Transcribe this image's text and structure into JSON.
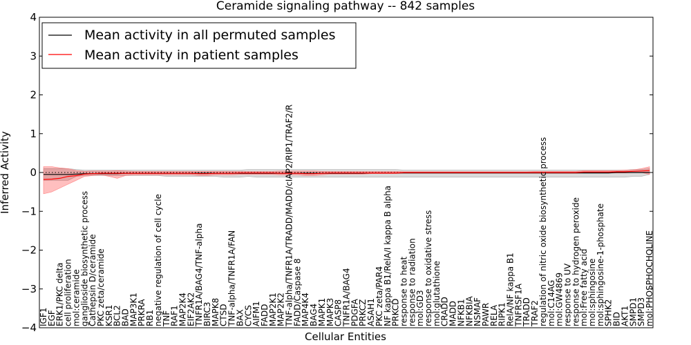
{
  "chart_data": {
    "type": "line",
    "title": "Ceramide signaling pathway -- 842 samples",
    "xlabel": "Cellular Entities",
    "ylabel": "Inferred Activity",
    "ylim": [
      -4,
      4
    ],
    "yticks": [
      -4,
      -3,
      -2,
      -1,
      0,
      1,
      2,
      3,
      4
    ],
    "ytick_labels": [
      "−4",
      "−3",
      "−2",
      "−1",
      "0",
      "1",
      "2",
      "3",
      "4"
    ],
    "grid": false,
    "legend_position": "top-left",
    "categories": [
      "IGF1",
      "EGF",
      "ERK1/PKC delta",
      "cell proliferation",
      "mol:ceramide",
      "ganglioside biosynthetic process",
      "Cathepsin D/ceramide",
      "PKC zeta/ceramide",
      "KSR1",
      "BCL2",
      "BAD",
      "MAP3K1",
      "PRKRA",
      "RB1",
      "negative regulation of cell cycle",
      "TNF",
      "RAF1",
      "MAP2K4",
      "EIF2AK2",
      "TNFR1A/BAG4/TNF-alpha",
      "BIRC3",
      "MAPK8",
      "CTSD",
      "TNF-alpha/TNFR1A/FAN",
      "BAX",
      "CYCS",
      "AIFM1",
      "FADD",
      "MAP2K1",
      "MAP2K2",
      "TNF-alpha/TNFR1A/TRADD/MADD/cIAP2/RIP1/TRAF2/R",
      "FADD/Caspase 8",
      "MAP4K4",
      "BAG4",
      "MAPK1",
      "MAPK3",
      "CASP8",
      "TNFR1A/BAG4",
      "PDGFA",
      "PRKCZ",
      "ASAH1",
      "PKC zeta/PAR4",
      "NF kappa B1/RelA/I kappa B alpha",
      "PRKCD",
      "response to heat",
      "response to radiation",
      "mol:GD3",
      "response to oxidative stress",
      "mol:glutathione",
      "CRADD",
      "MADD",
      "NFKB1",
      "NFKBIA",
      "NSMAF",
      "PAWR",
      "RELA",
      "RIPK1",
      "RelA/NF kappa B1",
      "TNFRSF1A",
      "TRADD",
      "TRAF2",
      "regulation of nitric oxide biosynthetic process",
      "mol:C14AG",
      "mol:GW4869",
      "response to UV",
      "response to hydrogen peroxide",
      "mol:Free fatty acid",
      "mol:sphingosine",
      "mol:sphingosine-1-phosphate",
      "SPHK2",
      "BID",
      "AKT1",
      "SMPD1",
      "SMPD3",
      "mol:PHOSPHOCHOLINE"
    ],
    "series": [
      {
        "name": "Mean activity in all permuted samples",
        "color": "#000000",
        "values": [
          -0.05,
          -0.05,
          -0.05,
          -0.05,
          -0.04,
          -0.03,
          -0.03,
          -0.03,
          -0.03,
          -0.03,
          -0.02,
          -0.02,
          -0.02,
          -0.02,
          -0.02,
          -0.02,
          -0.02,
          -0.02,
          -0.02,
          -0.02,
          -0.02,
          -0.02,
          -0.02,
          -0.02,
          -0.02,
          -0.02,
          -0.02,
          -0.02,
          -0.02,
          -0.02,
          -0.02,
          -0.02,
          -0.02,
          -0.02,
          -0.02,
          -0.02,
          -0.02,
          -0.02,
          -0.02,
          -0.02,
          -0.01,
          -0.01,
          -0.01,
          -0.01,
          -0.01,
          -0.01,
          -0.01,
          -0.01,
          -0.01,
          -0.01,
          -0.01,
          -0.01,
          -0.01,
          -0.01,
          -0.01,
          -0.01,
          -0.01,
          -0.01,
          -0.01,
          -0.01,
          -0.01,
          -0.01,
          -0.01,
          -0.01,
          -0.01,
          -0.01,
          -0.01,
          -0.01,
          -0.01,
          -0.01,
          0.0,
          0.0,
          0.0,
          0.0,
          0.0
        ],
        "band": {
          "lower": [
            -0.2,
            -0.2,
            -0.2,
            -0.2,
            -0.1,
            -0.08,
            -0.08,
            -0.08,
            -0.08,
            -0.08,
            -0.08,
            -0.08,
            -0.08,
            -0.08,
            -0.08,
            -0.1,
            -0.1,
            -0.1,
            -0.1,
            -0.1,
            -0.1,
            -0.1,
            -0.12,
            -0.12,
            -0.12,
            -0.1,
            -0.12,
            -0.12,
            -0.12,
            -0.12,
            -0.12,
            -0.12,
            -0.12,
            -0.12,
            -0.12,
            -0.12,
            -0.12,
            -0.12,
            -0.12,
            -0.12,
            -0.12,
            -0.12,
            -0.12,
            -0.12,
            -0.12,
            -0.12,
            -0.12,
            -0.12,
            -0.12,
            -0.12,
            -0.12,
            -0.12,
            -0.12,
            -0.12,
            -0.12,
            -0.12,
            -0.12,
            -0.12,
            -0.12,
            -0.12,
            -0.12,
            -0.12,
            -0.12,
            -0.12,
            -0.12,
            -0.12,
            -0.12,
            -0.12,
            -0.12,
            -0.12,
            -0.12,
            -0.12,
            -0.1,
            -0.1,
            -0.05
          ],
          "upper": [
            0.1,
            0.1,
            0.1,
            0.1,
            0.08,
            0.06,
            0.06,
            0.06,
            0.06,
            0.06,
            0.06,
            0.06,
            0.06,
            0.06,
            0.06,
            0.06,
            0.06,
            0.06,
            0.06,
            0.06,
            0.06,
            0.06,
            0.06,
            0.06,
            0.06,
            0.08,
            0.08,
            0.08,
            0.08,
            0.08,
            0.08,
            0.08,
            0.08,
            0.08,
            0.08,
            0.08,
            0.08,
            0.08,
            0.08,
            0.08,
            0.08,
            0.08,
            0.08,
            0.08,
            0.06,
            0.06,
            0.06,
            0.06,
            0.06,
            0.06,
            0.06,
            0.06,
            0.06,
            0.06,
            0.06,
            0.06,
            0.06,
            0.06,
            0.06,
            0.06,
            0.06,
            0.06,
            0.06,
            0.06,
            0.06,
            0.06,
            0.06,
            0.06,
            0.06,
            0.06,
            0.06,
            0.06,
            0.08,
            0.08,
            0.1
          ]
        }
      },
      {
        "name": "Mean activity in patient samples",
        "color": "#ff0000",
        "values": [
          -0.18,
          -0.17,
          -0.15,
          -0.1,
          -0.08,
          -0.04,
          -0.03,
          -0.02,
          -0.02,
          -0.02,
          -0.02,
          -0.02,
          -0.02,
          -0.02,
          -0.02,
          -0.02,
          -0.02,
          -0.02,
          -0.02,
          -0.03,
          -0.03,
          -0.02,
          -0.02,
          -0.02,
          -0.01,
          -0.01,
          -0.01,
          -0.01,
          -0.01,
          -0.02,
          -0.02,
          -0.02,
          -0.03,
          -0.03,
          -0.02,
          -0.01,
          -0.01,
          -0.01,
          -0.01,
          -0.01,
          -0.01,
          -0.01,
          -0.01,
          -0.01,
          0.0,
          0.0,
          0.0,
          0.0,
          0.0,
          0.0,
          0.0,
          0.0,
          0.0,
          0.0,
          0.0,
          0.0,
          0.0,
          0.0,
          0.0,
          0.0,
          0.0,
          0.0,
          0.0,
          0.0,
          0.0,
          0.0,
          0.01,
          0.01,
          0.01,
          0.01,
          0.02,
          0.02,
          0.03,
          0.04,
          0.05
        ],
        "band": {
          "lower": [
            -0.55,
            -0.5,
            -0.4,
            -0.3,
            -0.2,
            -0.1,
            -0.08,
            -0.06,
            -0.1,
            -0.15,
            -0.08,
            -0.06,
            -0.06,
            -0.06,
            -0.06,
            -0.06,
            -0.06,
            -0.06,
            -0.06,
            -0.08,
            -0.08,
            -0.06,
            -0.06,
            -0.06,
            -0.05,
            -0.05,
            -0.05,
            -0.05,
            -0.05,
            -0.06,
            -0.06,
            -0.06,
            -0.08,
            -0.08,
            -0.06,
            -0.04,
            -0.04,
            -0.04,
            -0.04,
            -0.04,
            -0.03,
            -0.03,
            -0.03,
            -0.03,
            -0.02,
            -0.02,
            -0.02,
            -0.02,
            -0.02,
            -0.02,
            -0.02,
            -0.02,
            -0.02,
            -0.02,
            -0.02,
            -0.02,
            -0.02,
            -0.02,
            -0.02,
            -0.02,
            -0.02,
            -0.02,
            -0.02,
            -0.02,
            -0.02,
            -0.02,
            -0.01,
            -0.01,
            -0.01,
            -0.01,
            -0.01,
            -0.01,
            0.0,
            0.0,
            -0.05
          ],
          "upper": [
            0.15,
            0.15,
            0.12,
            0.1,
            0.05,
            0.03,
            0.04,
            0.04,
            0.04,
            0.05,
            0.04,
            0.03,
            0.03,
            0.03,
            0.03,
            0.03,
            0.03,
            0.03,
            0.03,
            0.03,
            0.03,
            0.03,
            0.03,
            0.03,
            0.03,
            0.03,
            0.03,
            0.03,
            0.03,
            0.04,
            0.04,
            0.04,
            0.04,
            0.04,
            0.03,
            0.03,
            0.03,
            0.03,
            0.03,
            0.03,
            0.03,
            0.03,
            0.03,
            0.03,
            0.02,
            0.02,
            0.02,
            0.02,
            0.02,
            0.02,
            0.02,
            0.02,
            0.02,
            0.02,
            0.02,
            0.02,
            0.02,
            0.02,
            0.02,
            0.02,
            0.03,
            0.03,
            0.03,
            0.03,
            0.03,
            0.03,
            0.05,
            0.05,
            0.05,
            0.05,
            0.05,
            0.06,
            0.07,
            0.1,
            0.15
          ]
        }
      }
    ]
  }
}
